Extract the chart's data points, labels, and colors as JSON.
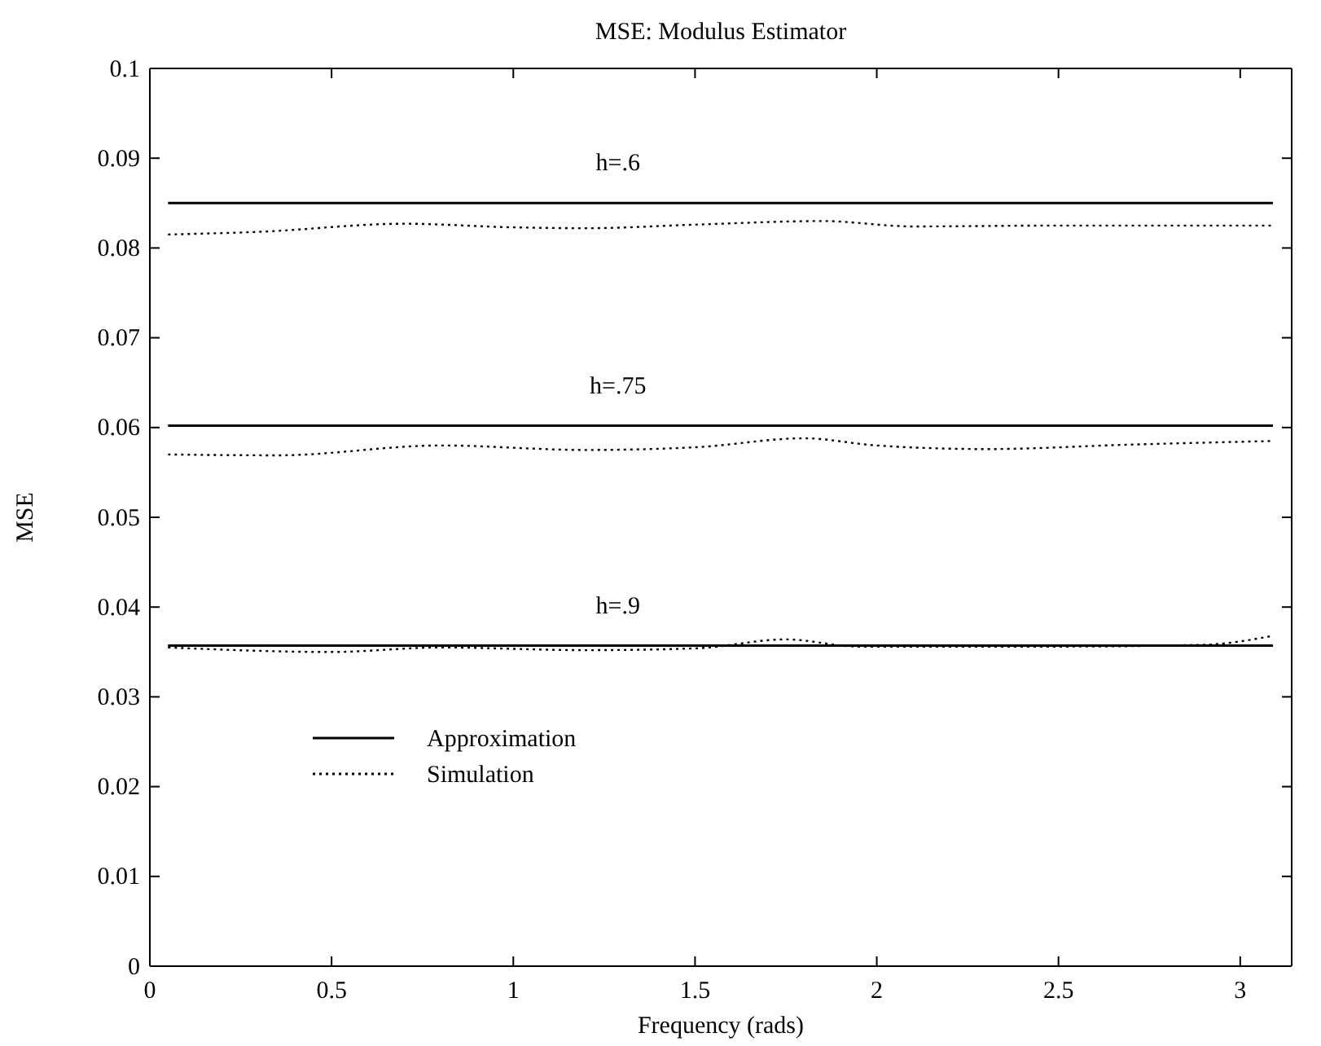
{
  "chart_data": {
    "type": "line",
    "title": "MSE: Modulus Estimator",
    "xlabel": "Frequency (rads)",
    "ylabel": "MSE",
    "xlim": [
      0,
      3.1416
    ],
    "ylim": [
      0,
      0.1
    ],
    "xticks": [
      0,
      0.5,
      1,
      1.5,
      2,
      2.5,
      3
    ],
    "yticks": [
      0,
      0.01,
      0.02,
      0.03,
      0.04,
      0.05,
      0.06,
      0.07,
      0.08,
      0.09,
      0.1
    ],
    "grid": false,
    "legend": "bottom left",
    "marker": "none",
    "series": [
      {
        "name": "Approximation",
        "color": "#000000",
        "line_style": "solid",
        "x": [
          0.05,
          3.09
        ],
        "values": [
          0.085,
          0.085
        ]
      },
      {
        "name": "Simulation",
        "color": "#000000",
        "line_style": "dotted",
        "x": [
          0.05,
          0.3,
          0.7,
          1.0,
          1.2,
          1.5,
          1.85,
          2.1,
          2.5,
          3.09
        ],
        "values": [
          0.0815,
          0.0818,
          0.0827,
          0.0823,
          0.0822,
          0.0826,
          0.083,
          0.0824,
          0.0825,
          0.0825
        ]
      },
      {
        "color": "#000000",
        "line_style": "solid",
        "x": [
          0.05,
          3.09
        ],
        "values": [
          0.0602,
          0.0602
        ]
      },
      {
        "color": "#000000",
        "line_style": "dotted",
        "x": [
          0.05,
          0.35,
          0.8,
          1.2,
          1.5,
          1.8,
          2.0,
          2.3,
          2.7,
          3.09
        ],
        "values": [
          0.057,
          0.0569,
          0.058,
          0.0575,
          0.0578,
          0.0588,
          0.058,
          0.0576,
          0.0581,
          0.0585
        ]
      },
      {
        "color": "#000000",
        "line_style": "solid",
        "x": [
          0.05,
          3.09
        ],
        "values": [
          0.0357,
          0.0357
        ]
      },
      {
        "color": "#000000",
        "line_style": "dotted",
        "x": [
          0.05,
          0.5,
          0.8,
          1.2,
          1.5,
          1.75,
          1.95,
          2.5,
          2.9,
          3.09
        ],
        "values": [
          0.0355,
          0.035,
          0.0355,
          0.0352,
          0.0354,
          0.0364,
          0.0356,
          0.0356,
          0.0358,
          0.0368
        ]
      }
    ],
    "annotations": [
      {
        "text": "h=.6",
        "y": 0.085
      },
      {
        "text": "h=.75",
        "y": 0.0602
      },
      {
        "text": "h=.9",
        "y": 0.0357
      }
    ]
  }
}
